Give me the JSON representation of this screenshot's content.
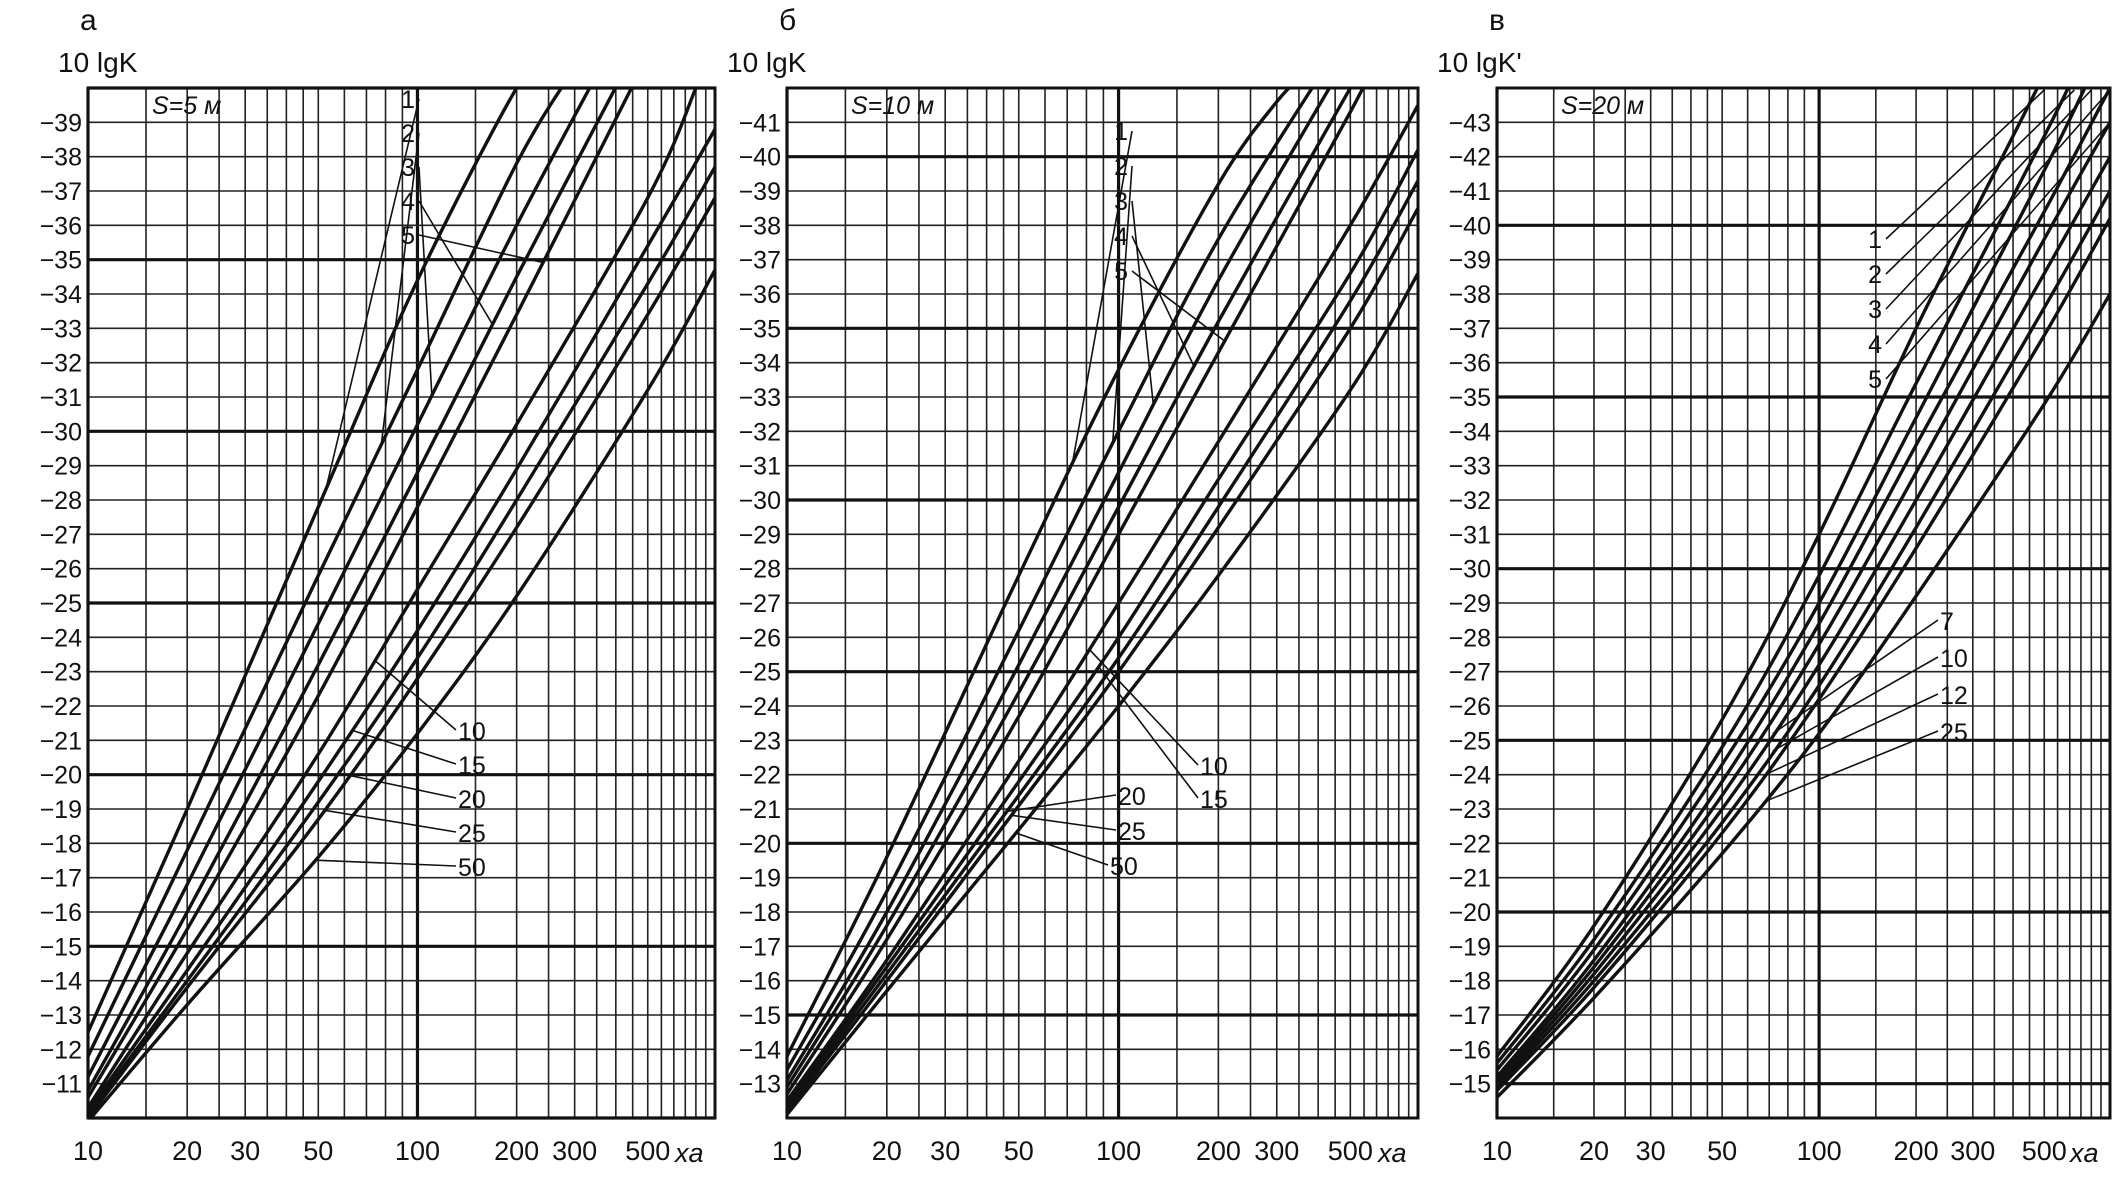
{
  "figure": {
    "background": "#ffffff",
    "ink": "#111111"
  },
  "chart_data": [
    {
      "type": "line",
      "panel_letter": "а",
      "ylabel": "10 lgK",
      "xlabel": "xa",
      "x_scale": "log",
      "xlim": [
        10,
        800
      ],
      "ylim": [
        10,
        40
      ],
      "x_ticks": [
        10,
        20,
        30,
        50,
        100,
        200,
        300,
        500
      ],
      "x_tick_labels": [
        "10",
        "20",
        "30",
        "50",
        "100",
        "200",
        "300",
        "500"
      ],
      "y_ticks": [
        11,
        12,
        13,
        14,
        15,
        16,
        17,
        18,
        19,
        20,
        21,
        22,
        23,
        24,
        25,
        26,
        27,
        28,
        29,
        30,
        31,
        32,
        33,
        34,
        35,
        36,
        37,
        38,
        39
      ],
      "y_tick_labels": [
        "−11",
        "−12",
        "−13",
        "−14",
        "−15",
        "−16",
        "−17",
        "−18",
        "−19",
        "−20",
        "−21",
        "−22",
        "−23",
        "−24",
        "−25",
        "−26",
        "−27",
        "−28",
        "−29",
        "−30",
        "−31",
        "−32",
        "−33",
        "−34",
        "−35",
        "−36",
        "−37",
        "−38",
        "−39"
      ],
      "param_label": "S=5 м",
      "grid": true,
      "series": [
        {
          "name": "1",
          "x": [
            10,
            20,
            50,
            100,
            200,
            240
          ],
          "y": [
            12.5,
            19.0,
            27.8,
            34.4,
            40.0,
            40.6
          ]
        },
        {
          "name": "2",
          "x": [
            10,
            20,
            50,
            100,
            200,
            300
          ],
          "y": [
            11.8,
            17.8,
            25.8,
            31.8,
            37.8,
            40.6
          ]
        },
        {
          "name": "3",
          "x": [
            10,
            20,
            50,
            100,
            200,
            360
          ],
          "y": [
            11.2,
            16.8,
            24.4,
            30.2,
            36.0,
            40.6
          ]
        },
        {
          "name": "4",
          "x": [
            10,
            20,
            50,
            100,
            200,
            430
          ],
          "y": [
            10.8,
            16.0,
            23.2,
            28.8,
            34.5,
            40.6
          ]
        },
        {
          "name": "5",
          "x": [
            10,
            20,
            50,
            100,
            200,
            480
          ],
          "y": [
            10.6,
            15.5,
            22.3,
            27.8,
            33.4,
            40.6
          ]
        },
        {
          "name": "10",
          "x": [
            10,
            20,
            50,
            100,
            200,
            500,
            700
          ],
          "y": [
            10.3,
            14.8,
            20.6,
            25.4,
            30.2,
            36.8,
            40.0
          ]
        },
        {
          "name": "15",
          "x": [
            10,
            20,
            50,
            100,
            200,
            500,
            800
          ],
          "y": [
            10.2,
            14.3,
            19.8,
            24.2,
            28.9,
            35.4,
            38.8
          ]
        },
        {
          "name": "20",
          "x": [
            10,
            20,
            50,
            100,
            200,
            500,
            800
          ],
          "y": [
            10.1,
            14.0,
            19.2,
            23.4,
            28.0,
            34.3,
            37.7
          ]
        },
        {
          "name": "25",
          "x": [
            10,
            20,
            50,
            100,
            200,
            500,
            800
          ],
          "y": [
            10.0,
            13.8,
            18.7,
            22.8,
            27.2,
            33.4,
            36.8
          ]
        },
        {
          "name": "50",
          "x": [
            10,
            20,
            50,
            100,
            200,
            500,
            800
          ],
          "y": [
            9.9,
            13.3,
            17.6,
            21.2,
            25.2,
            31.2,
            34.7
          ]
        }
      ]
    },
    {
      "type": "line",
      "panel_letter": "б",
      "ylabel": "10 lgK",
      "xlabel": "xa",
      "x_scale": "log",
      "xlim": [
        10,
        800
      ],
      "ylim": [
        12,
        42
      ],
      "x_ticks": [
        10,
        20,
        30,
        50,
        100,
        200,
        300,
        500
      ],
      "x_tick_labels": [
        "10",
        "20",
        "30",
        "50",
        "100",
        "200",
        "300",
        "500"
      ],
      "y_ticks": [
        13,
        14,
        15,
        16,
        17,
        18,
        19,
        20,
        21,
        22,
        23,
        24,
        25,
        26,
        27,
        28,
        29,
        30,
        31,
        32,
        33,
        34,
        35,
        36,
        37,
        38,
        39,
        40,
        41
      ],
      "y_tick_labels": [
        "−13",
        "−14",
        "−15",
        "−16",
        "−17",
        "−18",
        "−19",
        "−20",
        "−21",
        "−22",
        "−23",
        "−24",
        "−25",
        "−26",
        "−27",
        "−28",
        "−29",
        "−30",
        "−31",
        "−32",
        "−33",
        "−34",
        "−35",
        "−36",
        "−37",
        "−38",
        "−39",
        "−40",
        "−41"
      ],
      "param_label": "S=10 м",
      "grid": true,
      "series": [
        {
          "name": "1",
          "x": [
            10,
            20,
            50,
            100,
            200,
            300,
            380
          ],
          "y": [
            13.8,
            19.6,
            27.8,
            33.8,
            39.2,
            41.6,
            42.6
          ]
        },
        {
          "name": "2",
          "x": [
            10,
            20,
            50,
            100,
            200,
            420
          ],
          "y": [
            13.4,
            18.6,
            26.2,
            32.0,
            37.6,
            42.6
          ]
        },
        {
          "name": "3",
          "x": [
            10,
            20,
            50,
            100,
            200,
            470
          ],
          "y": [
            13.1,
            18.0,
            25.2,
            30.8,
            36.4,
            42.6
          ]
        },
        {
          "name": "4",
          "x": [
            10,
            20,
            50,
            100,
            200,
            500
          ],
          "y": [
            12.9,
            17.6,
            24.4,
            29.8,
            35.2,
            42.0
          ]
        },
        {
          "name": "5",
          "x": [
            10,
            20,
            50,
            100,
            200,
            500,
            560
          ],
          "y": [
            12.7,
            17.2,
            23.7,
            29.0,
            34.3,
            41.3,
            42.3
          ]
        },
        {
          "name": "10",
          "x": [
            10,
            20,
            50,
            100,
            200,
            500,
            800
          ],
          "y": [
            12.5,
            16.6,
            22.4,
            27.0,
            31.7,
            38.0,
            41.5
          ]
        },
        {
          "name": "15",
          "x": [
            10,
            20,
            50,
            100,
            200,
            500,
            800
          ],
          "y": [
            12.4,
            16.4,
            21.8,
            26.0,
            30.6,
            36.6,
            40.2
          ]
        },
        {
          "name": "20",
          "x": [
            10,
            20,
            50,
            100,
            200,
            500,
            800
          ],
          "y": [
            12.3,
            16.2,
            21.4,
            25.4,
            29.8,
            35.8,
            39.3
          ]
        },
        {
          "name": "25",
          "x": [
            10,
            20,
            50,
            100,
            200,
            500,
            800
          ],
          "y": [
            12.2,
            16.0,
            21.1,
            25.0,
            29.2,
            35.0,
            38.5
          ]
        },
        {
          "name": "50",
          "x": [
            10,
            20,
            50,
            100,
            200,
            500,
            800
          ],
          "y": [
            12.1,
            15.7,
            20.4,
            24.0,
            27.8,
            33.2,
            36.6
          ]
        }
      ]
    },
    {
      "type": "line",
      "panel_letter": "в",
      "ylabel": "10 lgK'",
      "xlabel": "xa",
      "x_scale": "log",
      "xlim": [
        10,
        800
      ],
      "ylim": [
        14,
        44
      ],
      "x_ticks": [
        10,
        20,
        30,
        50,
        100,
        200,
        300,
        500
      ],
      "x_tick_labels": [
        "10",
        "20",
        "30",
        "50",
        "100",
        "200",
        "300",
        "500"
      ],
      "y_ticks": [
        15,
        16,
        17,
        18,
        19,
        20,
        21,
        22,
        23,
        24,
        25,
        26,
        27,
        28,
        29,
        30,
        31,
        32,
        33,
        34,
        35,
        36,
        37,
        38,
        39,
        40,
        41,
        42,
        43
      ],
      "y_tick_labels": [
        "−15",
        "−16",
        "−17",
        "−18",
        "−19",
        "−20",
        "−21",
        "−22",
        "−23",
        "−24",
        "−25",
        "−26",
        "−27",
        "−28",
        "−29",
        "−30",
        "−31",
        "−32",
        "−33",
        "−34",
        "−35",
        "−36",
        "−37",
        "−38",
        "−39",
        "−40",
        "−41",
        "−42",
        "−43"
      ],
      "param_label": "S=20 м",
      "grid": true,
      "series": [
        {
          "name": "1",
          "x": [
            10,
            20,
            50,
            100,
            200,
            400,
            500
          ],
          "y": [
            15.8,
            19.6,
            25.6,
            31.0,
            37.0,
            42.6,
            44.4
          ]
        },
        {
          "name": "2",
          "x": [
            10,
            20,
            50,
            100,
            200,
            500,
            620
          ],
          "y": [
            15.6,
            19.2,
            24.8,
            29.8,
            35.4,
            42.6,
            44.4
          ]
        },
        {
          "name": "3",
          "x": [
            10,
            20,
            50,
            100,
            200,
            500,
            700
          ],
          "y": [
            15.4,
            18.9,
            24.3,
            29.0,
            34.4,
            41.6,
            44.4
          ]
        },
        {
          "name": "4",
          "x": [
            10,
            20,
            50,
            100,
            200,
            500,
            800
          ],
          "y": [
            15.2,
            18.6,
            23.8,
            28.4,
            33.6,
            40.4,
            44.0
          ]
        },
        {
          "name": "5",
          "x": [
            10,
            20,
            50,
            100,
            200,
            500,
            800
          ],
          "y": [
            15.1,
            18.4,
            23.4,
            27.8,
            32.8,
            39.6,
            43.0
          ]
        },
        {
          "name": "7",
          "x": [
            10,
            20,
            50,
            100,
            200,
            500,
            800
          ],
          "y": [
            15.0,
            18.2,
            23.0,
            27.2,
            32.0,
            38.6,
            42.0
          ]
        },
        {
          "name": "10",
          "x": [
            10,
            20,
            50,
            100,
            200,
            500,
            800
          ],
          "y": [
            14.9,
            18.0,
            22.6,
            26.6,
            31.2,
            37.6,
            41.0
          ]
        },
        {
          "name": "12",
          "x": [
            10,
            20,
            50,
            100,
            200,
            500,
            800
          ],
          "y": [
            14.8,
            17.8,
            22.3,
            26.2,
            30.6,
            36.8,
            40.2
          ]
        },
        {
          "name": "25",
          "x": [
            10,
            20,
            50,
            100,
            200,
            500,
            800
          ],
          "y": [
            14.6,
            17.5,
            21.7,
            25.2,
            29.2,
            34.8,
            38.0
          ]
        }
      ]
    }
  ]
}
